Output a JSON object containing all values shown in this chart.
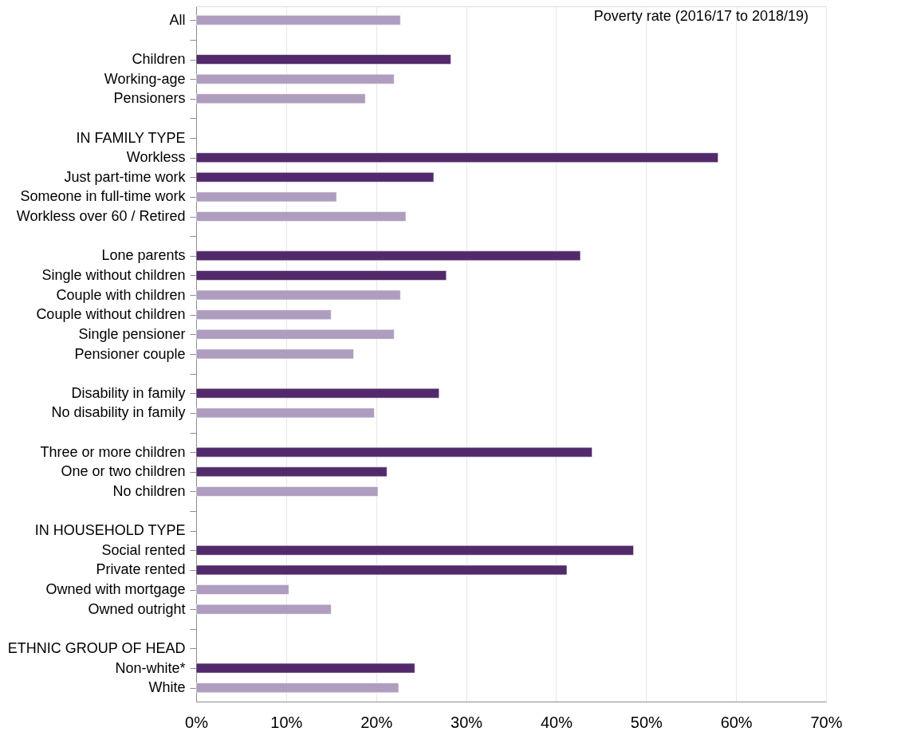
{
  "chart_data": {
    "type": "bar",
    "orientation": "horizontal",
    "title": "Poverty rate (2016/17 to 2018/19)",
    "categories": [
      "All",
      null,
      "Children",
      "Working-age",
      "Pensioners",
      null,
      "IN FAMILY TYPE",
      "Workless",
      "Just part-time work",
      "Someone in full-time work",
      "Workless over 60 / Retired",
      null,
      "Lone parents",
      "Single without children",
      "Couple with children",
      "Couple without children",
      "Single pensioner",
      "Pensioner couple",
      null,
      "Disability in family",
      "No disability in family",
      null,
      "Three or more children",
      "One or two children",
      "No children",
      null,
      "IN HOUSEHOLD TYPE",
      "Social rented",
      "Private rented",
      "Owned with mortgage",
      "Owned outright",
      null,
      "ETHNIC GROUP OF HEAD",
      "Non-white*",
      "White"
    ],
    "values": [
      22.7,
      null,
      28.3,
      22.0,
      18.8,
      null,
      null,
      58.0,
      26.4,
      15.6,
      23.3,
      null,
      42.7,
      27.8,
      22.7,
      15.0,
      22.0,
      17.5,
      null,
      27.0,
      19.8,
      null,
      44.0,
      21.2,
      20.2,
      null,
      null,
      48.6,
      41.2,
      10.3,
      15.0,
      null,
      null,
      24.3,
      22.5
    ],
    "colors": [
      "#ae9dbf",
      null,
      "#522a6b",
      "#ae9dbf",
      "#ae9dbf",
      null,
      null,
      "#522a6b",
      "#522a6b",
      "#ae9dbf",
      "#ae9dbf",
      null,
      "#522a6b",
      "#522a6b",
      "#ae9dbf",
      "#ae9dbf",
      "#ae9dbf",
      "#ae9dbf",
      null,
      "#522a6b",
      "#ae9dbf",
      null,
      "#522a6b",
      "#522a6b",
      "#ae9dbf",
      null,
      null,
      "#522a6b",
      "#522a6b",
      "#ae9dbf",
      "#ae9dbf",
      null,
      null,
      "#522a6b",
      "#ae9dbf"
    ],
    "xlim": [
      0,
      70
    ],
    "xticks": [
      {
        "value": 0,
        "label": "0%"
      },
      {
        "value": 10,
        "label": "10%"
      },
      {
        "value": 20,
        "label": "20%"
      },
      {
        "value": 30,
        "label": "30%"
      },
      {
        "value": 40,
        "label": "40%"
      },
      {
        "value": 50,
        "label": "50%"
      },
      {
        "value": 60,
        "label": "60%"
      },
      {
        "value": 70,
        "label": "70%"
      }
    ],
    "grid": "x"
  }
}
